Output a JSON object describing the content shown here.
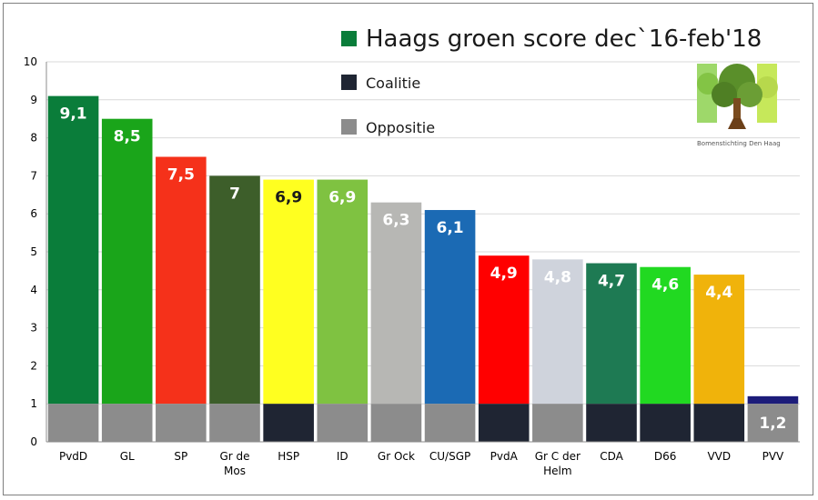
{
  "chart_data": {
    "type": "bar",
    "title": "Haags groen score dec`16-feb'18",
    "xlabel": "",
    "ylabel": "",
    "ylim": [
      0,
      10
    ],
    "yticks": [
      0,
      1,
      2,
      3,
      4,
      5,
      6,
      7,
      8,
      9,
      10
    ],
    "grid": true,
    "categories": [
      "PvdD",
      "GL",
      "SP",
      "Gr de Mos",
      "HSP",
      "ID",
      "Gr Ock",
      "CU/SGP",
      "PvdA",
      "Gr C der Helm",
      "CDA",
      "D66",
      "VVD",
      "PVV"
    ],
    "category_lines": [
      [
        "PvdD"
      ],
      [
        "GL"
      ],
      [
        "SP"
      ],
      [
        "Gr de",
        "Mos"
      ],
      [
        "HSP"
      ],
      [
        "ID"
      ],
      [
        "Gr Ock"
      ],
      [
        "CU/SGP"
      ],
      [
        "PvdA"
      ],
      [
        "Gr C der",
        "Helm"
      ],
      [
        "CDA"
      ],
      [
        "D66"
      ],
      [
        "VVD"
      ],
      [
        "PVV"
      ]
    ],
    "values": [
      9.1,
      8.5,
      7.5,
      7,
      6.9,
      6.9,
      6.3,
      6.1,
      4.9,
      4.8,
      4.7,
      4.6,
      4.4,
      1.2
    ],
    "value_labels": [
      "9,1",
      "8,5",
      "7,5",
      "7",
      "6,9",
      "6,9",
      "6,3",
      "6,1",
      "4,9",
      "4,8",
      "4,7",
      "4,6",
      "4,4",
      "1,2"
    ],
    "bar_colors": [
      "#0a7d3a",
      "#1aa51a",
      "#f5311a",
      "#3d5e2a",
      "#ffff20",
      "#7fc241",
      "#b7b7b4",
      "#1b6ab4",
      "#ff0000",
      "#cfd3dc",
      "#1e7a53",
      "#21d921",
      "#f0b30b",
      "#1c1c7a"
    ],
    "label_colors": [
      "#ffffff",
      "#ffffff",
      "#ffffff",
      "#ffffff",
      "#1a1a1a",
      "#ffffff",
      "#ffffff",
      "#ffffff",
      "#ffffff",
      "#ffffff",
      "#ffffff",
      "#ffffff",
      "#ffffff",
      "#ffffff"
    ],
    "base_value": 1,
    "base_status": [
      "oppositie",
      "oppositie",
      "oppositie",
      "oppositie",
      "coalitie",
      "oppositie",
      "oppositie",
      "oppositie",
      "coalitie",
      "oppositie",
      "coalitie",
      "coalitie",
      "coalitie",
      "oppositie"
    ],
    "legend": [
      {
        "name": "Haags groen score dec`16-feb'18",
        "color": "#0a7d3a"
      },
      {
        "name": "Coalitie",
        "color": "#1f2533"
      },
      {
        "name": "Oppositie",
        "color": "#8c8c8c"
      }
    ],
    "legend_position": "top-right",
    "status_colors": {
      "coalitie": "#1f2533",
      "oppositie": "#8c8c8c"
    }
  },
  "logo": {
    "icon": "tree-logo-icon",
    "caption": "Bomenstichting Den Haag"
  }
}
